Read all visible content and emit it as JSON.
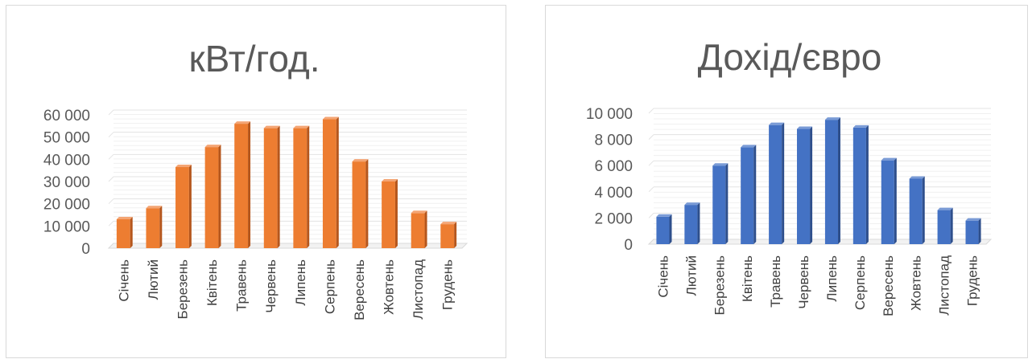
{
  "chart_data": [
    {
      "type": "bar",
      "title": "кВт/год.",
      "categories": [
        "Січень",
        "Лютий",
        "Березень",
        "Квітень",
        "Травень",
        "Червень",
        "Липень",
        "Серпень",
        "Вересень",
        "Жовтень",
        "Листопад",
        "Грудень"
      ],
      "values": [
        13000,
        18000,
        36500,
        45500,
        56000,
        54000,
        54000,
        58000,
        39000,
        30000,
        15800,
        10800
      ],
      "yticks": [
        "0",
        "10 000",
        "20 000",
        "30 000",
        "40 000",
        "50 000",
        "60 000"
      ],
      "ylim": [
        0,
        60000
      ],
      "color": "#ED7D31",
      "color_side": "#B5561C",
      "color_top": "#F4A574"
    },
    {
      "type": "bar",
      "title": "Дохід/євро",
      "categories": [
        "Січень",
        "Лютий",
        "Березень",
        "Квітень",
        "Травень",
        "Червень",
        "Липень",
        "Серпень",
        "Вересень",
        "Жовтень",
        "Листопад",
        "Грудень"
      ],
      "values": [
        2100,
        3000,
        6000,
        7400,
        9100,
        8800,
        9500,
        8900,
        6400,
        5000,
        2600,
        1800
      ],
      "yticks": [
        "0",
        "2 000",
        "4 000",
        "6 000",
        "8 000",
        "10 000"
      ],
      "ylim": [
        0,
        10000
      ],
      "color": "#4472C4",
      "color_side": "#2E4F8C",
      "color_top": "#7A9BD6"
    }
  ]
}
